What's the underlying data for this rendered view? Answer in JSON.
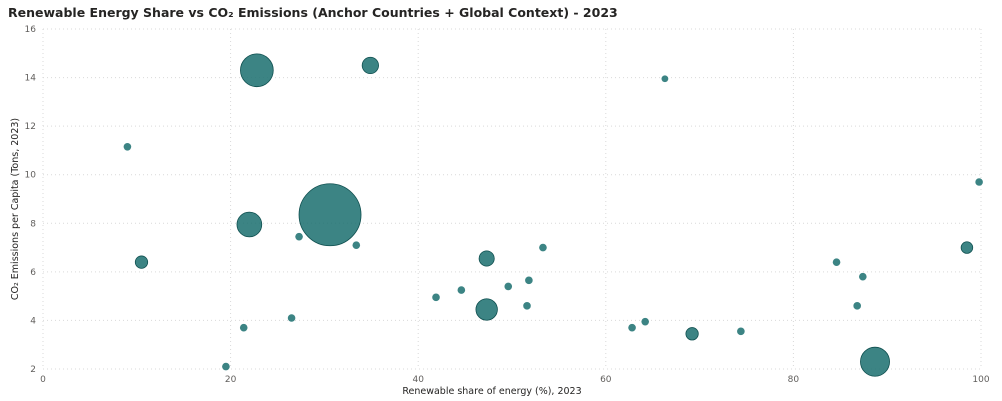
{
  "chart_data": {
    "type": "scatter",
    "title": "Renewable Energy Share vs CO₂ Emissions (Anchor Countries + Global Context) - 2023",
    "xlabel": "Renewable share of energy (%), 2023",
    "ylabel": "CO₂ Emissions per Capita (Tons, 2023)",
    "xlim": [
      0,
      100
    ],
    "ylim": [
      2,
      16
    ],
    "xticks": [
      0,
      20,
      40,
      60,
      80,
      100
    ],
    "yticks": [
      2,
      4,
      6,
      8,
      10,
      12,
      14,
      16
    ],
    "grid": true,
    "bubble": true,
    "color": "#1a6e6e",
    "points": [
      {
        "x": 30.6,
        "y": 8.35,
        "size": 100
      },
      {
        "x": 22.8,
        "y": 14.3,
        "size": 28
      },
      {
        "x": 88.7,
        "y": 2.3,
        "size": 22
      },
      {
        "x": 22.0,
        "y": 7.95,
        "size": 16
      },
      {
        "x": 47.3,
        "y": 4.45,
        "size": 12
      },
      {
        "x": 34.9,
        "y": 14.5,
        "size": 7
      },
      {
        "x": 47.3,
        "y": 6.55,
        "size": 6
      },
      {
        "x": 10.5,
        "y": 6.4,
        "size": 4
      },
      {
        "x": 69.2,
        "y": 3.45,
        "size": 4
      },
      {
        "x": 98.5,
        "y": 7.0,
        "size": 3.5
      },
      {
        "x": 9.0,
        "y": 11.15,
        "size": 1.5
      },
      {
        "x": 66.3,
        "y": 13.95,
        "size": 1.2
      },
      {
        "x": 99.8,
        "y": 9.7,
        "size": 1.5
      },
      {
        "x": 27.3,
        "y": 7.45,
        "size": 1.5
      },
      {
        "x": 33.4,
        "y": 7.1,
        "size": 1.5
      },
      {
        "x": 53.3,
        "y": 7.0,
        "size": 1.5
      },
      {
        "x": 84.6,
        "y": 6.4,
        "size": 1.5
      },
      {
        "x": 87.4,
        "y": 5.8,
        "size": 1.5
      },
      {
        "x": 51.8,
        "y": 5.65,
        "size": 1.5
      },
      {
        "x": 49.6,
        "y": 5.4,
        "size": 1.5
      },
      {
        "x": 44.6,
        "y": 5.25,
        "size": 1.5
      },
      {
        "x": 41.9,
        "y": 4.95,
        "size": 1.5
      },
      {
        "x": 51.6,
        "y": 4.6,
        "size": 1.5
      },
      {
        "x": 86.8,
        "y": 4.6,
        "size": 1.5
      },
      {
        "x": 26.5,
        "y": 4.1,
        "size": 1.5
      },
      {
        "x": 64.2,
        "y": 3.95,
        "size": 1.5
      },
      {
        "x": 21.4,
        "y": 3.7,
        "size": 1.5
      },
      {
        "x": 62.8,
        "y": 3.7,
        "size": 1.5
      },
      {
        "x": 74.4,
        "y": 3.55,
        "size": 1.5
      },
      {
        "x": 19.5,
        "y": 2.1,
        "size": 1.5
      }
    ]
  }
}
